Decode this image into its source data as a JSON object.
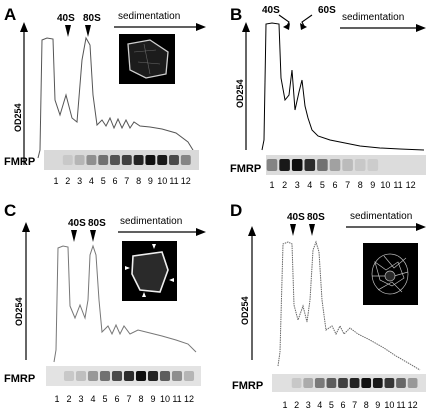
{
  "panels": [
    {
      "letter": "A",
      "peaks": [
        "40S",
        "80S"
      ],
      "direction": "sedimentation",
      "y_axis": "OD254",
      "blot_label": "FMRP",
      "lanes": [
        "1",
        "2",
        "3",
        "4",
        "5",
        "6",
        "7",
        "8",
        "9",
        "10",
        "11",
        "12"
      ],
      "band_intensity": [
        0,
        0.05,
        0.15,
        0.35,
        0.5,
        0.65,
        0.75,
        0.9,
        1.0,
        0.95,
        0.7,
        0.4
      ],
      "profile_color": "#555555",
      "inset": "cell-image"
    },
    {
      "letter": "B",
      "peaks": [
        "40S",
        "60S"
      ],
      "direction": "sedimentation",
      "y_axis": "OD254",
      "blot_label": "FMRP",
      "lanes": [
        "1",
        "2",
        "3",
        "4",
        "5",
        "6",
        "7",
        "8",
        "9",
        "10",
        "11",
        "12"
      ],
      "band_intensity": [
        0.4,
        0.95,
        1.0,
        0.85,
        0.5,
        0.25,
        0.12,
        0.05,
        0.03,
        0,
        0,
        0
      ],
      "profile_color": "#000000"
    },
    {
      "letter": "C",
      "peaks": [
        "40S",
        "80S"
      ],
      "direction": "sedimentation",
      "y_axis": "OD254",
      "blot_label": "FMRP",
      "lanes": [
        "1",
        "2",
        "3",
        "4",
        "5",
        "6",
        "7",
        "8",
        "9",
        "10",
        "11",
        "12"
      ],
      "band_intensity": [
        0,
        0.05,
        0.1,
        0.3,
        0.5,
        0.7,
        0.85,
        1.0,
        0.9,
        0.6,
        0.35,
        0.15
      ],
      "profile_color": "#777777",
      "inset": "cell-image-arrowheads"
    },
    {
      "letter": "D",
      "peaks": [
        "40S",
        "80S"
      ],
      "direction": "sedimentation",
      "y_axis": "OD254",
      "blot_label": "FMRP",
      "lanes": [
        "1",
        "2",
        "3",
        "4",
        "5",
        "6",
        "7",
        "8",
        "9",
        "10",
        "11",
        "12"
      ],
      "band_intensity": [
        0,
        0.05,
        0.2,
        0.45,
        0.6,
        0.75,
        0.9,
        1.0,
        0.95,
        0.8,
        0.55,
        0.3
      ],
      "profile_color": "#666666",
      "inset": "cell-image-network"
    }
  ]
}
